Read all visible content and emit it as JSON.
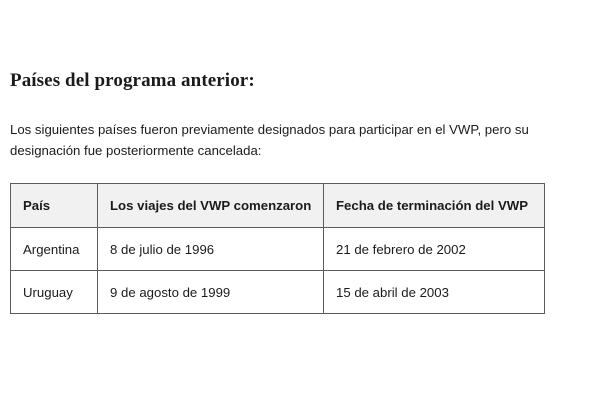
{
  "section": {
    "heading": "Países del programa anterior:",
    "intro": "Los siguientes países fueron previamente designados para participar en el VWP, pero su designación fue posteriormente cancelada:"
  },
  "table": {
    "headers": [
      "País",
      "Los viajes del VWP comenzaron",
      "Fecha de terminación del VWP"
    ],
    "rows": [
      [
        "Argentina",
        "8 de julio de 1996",
        "21 de febrero de 2002"
      ],
      [
        "Uruguay",
        "9 de agosto de 1999",
        "15 de abril de 2003"
      ]
    ]
  },
  "colors": {
    "text": "#1b1b1b",
    "header_bg": "#f1f1f1",
    "border": "#5c5c5c",
    "background": "#ffffff"
  }
}
